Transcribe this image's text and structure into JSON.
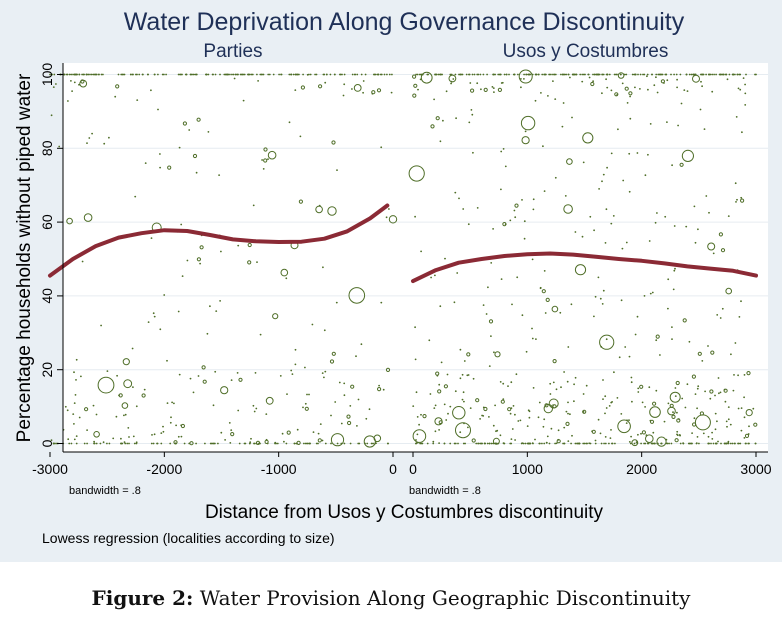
{
  "chart_data": {
    "type": "scatter",
    "title": "Water Deprivation Along Governance Discontinuity",
    "ylabel": "Percentage households without piped water",
    "xlabel": "Distance from Usos y Costumbres discontinuity",
    "note": "Lowess regression (localities according to size)",
    "ylim": [
      0,
      100
    ],
    "yticks": [
      0,
      20,
      40,
      60,
      80,
      100
    ],
    "grid": true,
    "colors": {
      "points": "#4f6e28",
      "lowess": "#8b2a35",
      "title": "#1f3057",
      "panel": "#ffffff",
      "frame": "#e9eff4",
      "grid": "#e6ecf1"
    },
    "panels": [
      {
        "name": "Parties",
        "bandwidth_label": "bandwidth = .8",
        "xlim": [
          -3000,
          0
        ],
        "xticks": [
          "-3000",
          "-2000",
          "-1000",
          "0"
        ],
        "xtick_values": [
          -3000,
          -2000,
          -1000,
          0
        ],
        "lowess": {
          "x": [
            -3000,
            -2800,
            -2600,
            -2400,
            -2200,
            -2000,
            -1800,
            -1600,
            -1400,
            -1200,
            -1000,
            -800,
            -600,
            -400,
            -200,
            -50
          ],
          "y": [
            45.5,
            50,
            53.5,
            55.8,
            57,
            57.8,
            57.6,
            56.5,
            55.3,
            54.8,
            54.6,
            54.7,
            55.5,
            57.5,
            61,
            64.5
          ]
        }
      },
      {
        "name": "Usos y Costumbres",
        "bandwidth_label": "bandwidth = .8",
        "xlim": [
          0,
          3000
        ],
        "xticks": [
          "0",
          "1000",
          "2000",
          "3000"
        ],
        "xtick_values": [
          0,
          1000,
          2000,
          3000
        ],
        "lowess": {
          "x": [
            0,
            200,
            400,
            600,
            800,
            1000,
            1200,
            1400,
            1600,
            1800,
            2000,
            2200,
            2400,
            2600,
            2800,
            3000
          ],
          "y": [
            44,
            47,
            49,
            50,
            50.8,
            51.3,
            51.5,
            51.2,
            50.6,
            50,
            49.5,
            48.8,
            48,
            47.4,
            46.8,
            45.5
          ]
        }
      }
    ]
  },
  "figure_caption": {
    "label": "Figure 2:",
    "text": "Water Provision Along Geographic Discontinuity"
  }
}
